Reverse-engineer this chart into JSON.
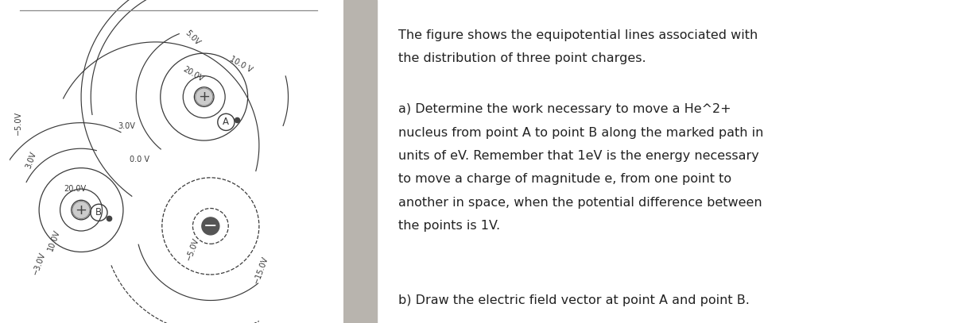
{
  "fig_bg_color": "#dedad4",
  "text_panel_color": "#ffffff",
  "line_color": "#3a3a3a",
  "label_color": "#3a3a3a",
  "title_line1": "The figure shows the equipotential lines associated with",
  "title_line2": "the distribution of three point charges.",
  "para_a_line1": "a) Determine the work necessary to move a He^2+",
  "para_a_line2": "nucleus from point A to point B along the marked path in",
  "para_a_line3": "units of eV. Remember that 1eV is the energy necessary",
  "para_a_line4": "to move a charge of magnitude e, from one point to",
  "para_a_line5": "another in space, when the potential difference between",
  "para_a_line6": "the points is 1V.",
  "para_b": "b) Draw the electric field vector at point A and point B.",
  "fig_width": 12.0,
  "fig_height": 4.07,
  "split": 0.36
}
